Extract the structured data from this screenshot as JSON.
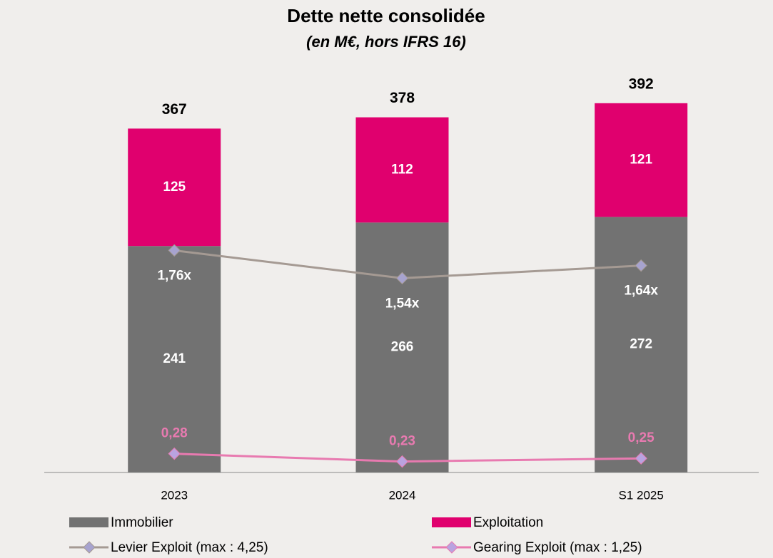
{
  "chart_data": {
    "type": "bar",
    "stacked": true,
    "title": "Dette nette consolidée",
    "subtitle": "(en M€, hors IFRS 16)",
    "categories": [
      "2023",
      "2024",
      "S1 2025"
    ],
    "ylim": [
      0,
      427
    ],
    "y2lim": [
      0,
      3.18
    ],
    "y3lim": [
      0.16,
      2.72
    ],
    "totals": [
      367,
      378,
      392
    ],
    "series": [
      {
        "name": "Immobilier",
        "type": "bar",
        "color": "#727272",
        "values": [
          241,
          266,
          272
        ]
      },
      {
        "name": "Exploitation",
        "type": "bar",
        "color": "#e0006e",
        "values": [
          125,
          112,
          121
        ]
      },
      {
        "name": "Levier Exploit (max : 4,25)",
        "type": "line",
        "axis": "y2",
        "color": "#a59a93",
        "marker_color": "#a7a3cf",
        "label_color": "#ffffff",
        "values": [
          1.76,
          1.54,
          1.64
        ],
        "value_labels": [
          "1,76x",
          "1,54x",
          "1,64x"
        ]
      },
      {
        "name": "Gearing Exploit (max : 1,25)",
        "type": "line",
        "axis": "y3",
        "color": "#e87ab0",
        "marker_color": "#b9a3e0",
        "label_color": "#e87ab0",
        "values": [
          0.28,
          0.23,
          0.25
        ],
        "value_labels": [
          "0,28",
          "0,23",
          "0,25"
        ]
      }
    ],
    "grid": false
  }
}
